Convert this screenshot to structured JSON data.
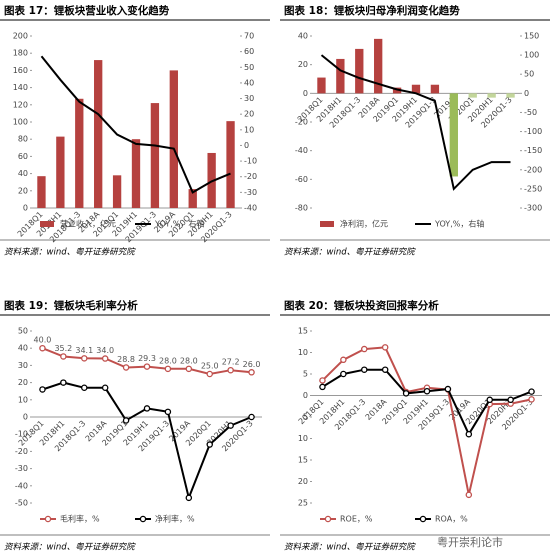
{
  "chart_data": [
    {
      "type": "combo",
      "title": "图表 17：锂板块营业收入变化趋势",
      "categories": [
        "2018Q1",
        "2018H1",
        "2018Q1-3",
        "2018A",
        "2019Q1",
        "2019H1",
        "2019Q1-3",
        "2019A",
        "2020Q1",
        "2020H1",
        "2020Q1-3"
      ],
      "ylim": [
        0,
        200
      ],
      "yticks": [
        0,
        20,
        40,
        60,
        80,
        100,
        120,
        140,
        160,
        180,
        200
      ],
      "y2lim": [
        -40,
        70
      ],
      "y2ticks": [
        -40,
        -30,
        -20,
        -10,
        0,
        10,
        20,
        30,
        40,
        50,
        60,
        70
      ],
      "series": [
        {
          "name": "营业收入，亿元",
          "type": "bar",
          "color": "#b5413f",
          "values": [
            37,
            83,
            127,
            172,
            38,
            80,
            122,
            160,
            22,
            64,
            101
          ]
        },
        {
          "name": "YOY,%，右轴",
          "type": "line",
          "axis": "y2",
          "color": "#000000",
          "values": [
            57,
            42,
            28,
            20,
            7,
            1,
            0,
            -2,
            -30,
            -23,
            -18
          ]
        }
      ],
      "source": "资料来源：wind、粤开证券研究院"
    },
    {
      "type": "combo",
      "title": "图表 18：锂板块归母净利润变化趋势",
      "categories": [
        "2018Q1",
        "2018H1",
        "2018Q1-3",
        "2018A",
        "2019Q1",
        "2019H1",
        "2019Q1-3",
        "2019A",
        "2020Q1",
        "2020H1",
        "2020Q1-3"
      ],
      "ylim": [
        -80,
        40
      ],
      "yticks": [
        -80,
        -60,
        -40,
        -20,
        0,
        20,
        40
      ],
      "y2lim": [
        -300,
        150
      ],
      "y2ticks": [
        -300,
        -250,
        -200,
        -150,
        -100,
        -50,
        0,
        50,
        100,
        150
      ],
      "series": [
        {
          "name": "净利润，亿元",
          "type": "bar",
          "color": "#b5413f",
          "colors": [
            "#b5413f",
            "#b5413f",
            "#b5413f",
            "#b5413f",
            "#b5413f",
            "#b5413f",
            "#b5413f",
            "#9bbb59",
            "#c3d69b",
            "#c3d69b",
            "#c3d69b"
          ],
          "values": [
            11,
            24,
            31,
            38,
            4,
            6,
            6,
            -58,
            -3,
            -3,
            -3
          ]
        },
        {
          "name": "YOY,%，右轴",
          "type": "line",
          "axis": "y2",
          "color": "#000000",
          "values": [
            100,
            60,
            40,
            25,
            10,
            0,
            -20,
            -250,
            -200,
            -180,
            -180
          ]
        }
      ],
      "source": "资料来源：wind、粤开证券研究院"
    },
    {
      "type": "line",
      "title": "图表 19：锂板块毛利率分析",
      "categories": [
        "2018Q1",
        "2018H1",
        "2018Q1-3",
        "2018A",
        "2019Q1",
        "2019H1",
        "2019Q1-3",
        "2019A",
        "2020Q1",
        "2020H1",
        "2020Q1-3"
      ],
      "ylim": [
        -50,
        50
      ],
      "yticks": [
        -50,
        -40,
        -30,
        -20,
        -10,
        0,
        10,
        20,
        30,
        40,
        50
      ],
      "series": [
        {
          "name": "毛利率，%",
          "type": "line",
          "color": "#c0504d",
          "marker": true,
          "values": [
            40.0,
            35.2,
            34.1,
            34.0,
            28.8,
            29.3,
            28.0,
            28.0,
            25.0,
            27.2,
            26.0
          ],
          "value_labels": [
            "40.0",
            "35.2",
            "34.1",
            "34.0",
            "28.8",
            "29.3",
            "28.0",
            "28.0",
            "25.0",
            "27.2",
            "26.0"
          ]
        },
        {
          "name": "净利率，%",
          "type": "line",
          "color": "#000000",
          "marker": true,
          "values": [
            16,
            20,
            17,
            17,
            -2,
            5,
            3,
            -47,
            -16,
            -5,
            0
          ]
        }
      ],
      "source": "资料来源：wind、粤开证券研究院"
    },
    {
      "type": "line",
      "title": "图表 20：锂板块投资回报率分析",
      "categories": [
        "2018Q1",
        "2018H1",
        "2018Q1-3",
        "2018A",
        "2019Q1",
        "2019H1",
        "2019Q1-3",
        "2019A",
        "2020Q1",
        "2020H1",
        "2020Q1-3"
      ],
      "ylim": [
        -25,
        15
      ],
      "yticks": [
        {
          "value": -25,
          "label": "25"
        },
        {
          "value": -20,
          "label": "20"
        },
        {
          "value": -15,
          "label": "15"
        },
        {
          "value": -10,
          "label": "10"
        },
        {
          "value": -5,
          "label": "5"
        },
        0,
        5,
        10,
        15
      ],
      "series": [
        {
          "name": "ROE，%",
          "type": "line",
          "color": "#c0504d",
          "marker": true,
          "values": [
            3.5,
            8.3,
            10.8,
            11.2,
            0.8,
            1.8,
            1.4,
            -23.1,
            -2.0,
            -1.9,
            -0.9
          ]
        },
        {
          "name": "ROA，%",
          "type": "line",
          "color": "#000000",
          "marker": true,
          "values": [
            2,
            5,
            6,
            6,
            0.5,
            1,
            1.5,
            -9,
            -1,
            -1,
            0.9
          ]
        }
      ],
      "source": "资料来源：wind、粤开证券研究院"
    }
  ],
  "watermark": "粤开崇利论市"
}
